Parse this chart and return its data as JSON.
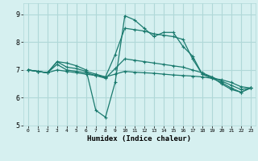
{
  "xlabel": "Humidex (Indice chaleur)",
  "xlim": [
    -0.5,
    23.5
  ],
  "ylim": [
    5,
    9.4
  ],
  "yticks": [
    5,
    6,
    7,
    8,
    9
  ],
  "xticks": [
    0,
    1,
    2,
    3,
    4,
    5,
    6,
    7,
    8,
    9,
    10,
    11,
    12,
    13,
    14,
    15,
    16,
    17,
    18,
    19,
    20,
    21,
    22,
    23
  ],
  "bg_color": "#d6f0f0",
  "grid_color": "#b0d8d8",
  "line_color": "#1a7a6e",
  "lines": [
    {
      "x": [
        0,
        1,
        2,
        3,
        4,
        5,
        6,
        7,
        8,
        9,
        10,
        11,
        12,
        13,
        14,
        15,
        16,
        17,
        18,
        19,
        20,
        21,
        22,
        23
      ],
      "y": [
        7.0,
        6.95,
        6.9,
        7.3,
        7.25,
        7.15,
        7.0,
        5.55,
        5.3,
        6.55,
        8.95,
        8.8,
        8.5,
        8.2,
        8.35,
        8.35,
        7.85,
        7.5,
        6.85,
        6.75,
        6.5,
        6.3,
        6.2,
        6.35
      ]
    },
    {
      "x": [
        0,
        1,
        2,
        3,
        4,
        5,
        6,
        7,
        8,
        9,
        10,
        11,
        12,
        13,
        14,
        15,
        16,
        17,
        18,
        19,
        20,
        21,
        22,
        23
      ],
      "y": [
        7.0,
        6.95,
        6.9,
        7.3,
        7.1,
        7.05,
        6.95,
        6.85,
        6.75,
        7.55,
        8.5,
        8.45,
        8.4,
        8.3,
        8.25,
        8.2,
        8.1,
        7.4,
        6.85,
        6.7,
        6.55,
        6.35,
        6.2,
        6.35
      ]
    },
    {
      "x": [
        0,
        1,
        2,
        3,
        4,
        5,
        6,
        7,
        8,
        9,
        10,
        11,
        12,
        13,
        14,
        15,
        16,
        17,
        18,
        19,
        20,
        21,
        22,
        23
      ],
      "y": [
        7.0,
        6.95,
        6.9,
        7.2,
        7.0,
        6.95,
        6.9,
        6.8,
        6.7,
        7.05,
        7.4,
        7.35,
        7.3,
        7.25,
        7.2,
        7.15,
        7.1,
        7.0,
        6.9,
        6.75,
        6.6,
        6.45,
        6.3,
        6.35
      ]
    },
    {
      "x": [
        0,
        1,
        2,
        3,
        4,
        5,
        6,
        7,
        8,
        9,
        10,
        11,
        12,
        13,
        14,
        15,
        16,
        17,
        18,
        19,
        20,
        21,
        22,
        23
      ],
      "y": [
        7.0,
        6.95,
        6.9,
        7.0,
        6.95,
        6.9,
        6.85,
        6.8,
        6.75,
        6.85,
        6.95,
        6.92,
        6.9,
        6.88,
        6.85,
        6.82,
        6.8,
        6.78,
        6.75,
        6.7,
        6.65,
        6.55,
        6.4,
        6.35
      ]
    }
  ],
  "marker": "+"
}
